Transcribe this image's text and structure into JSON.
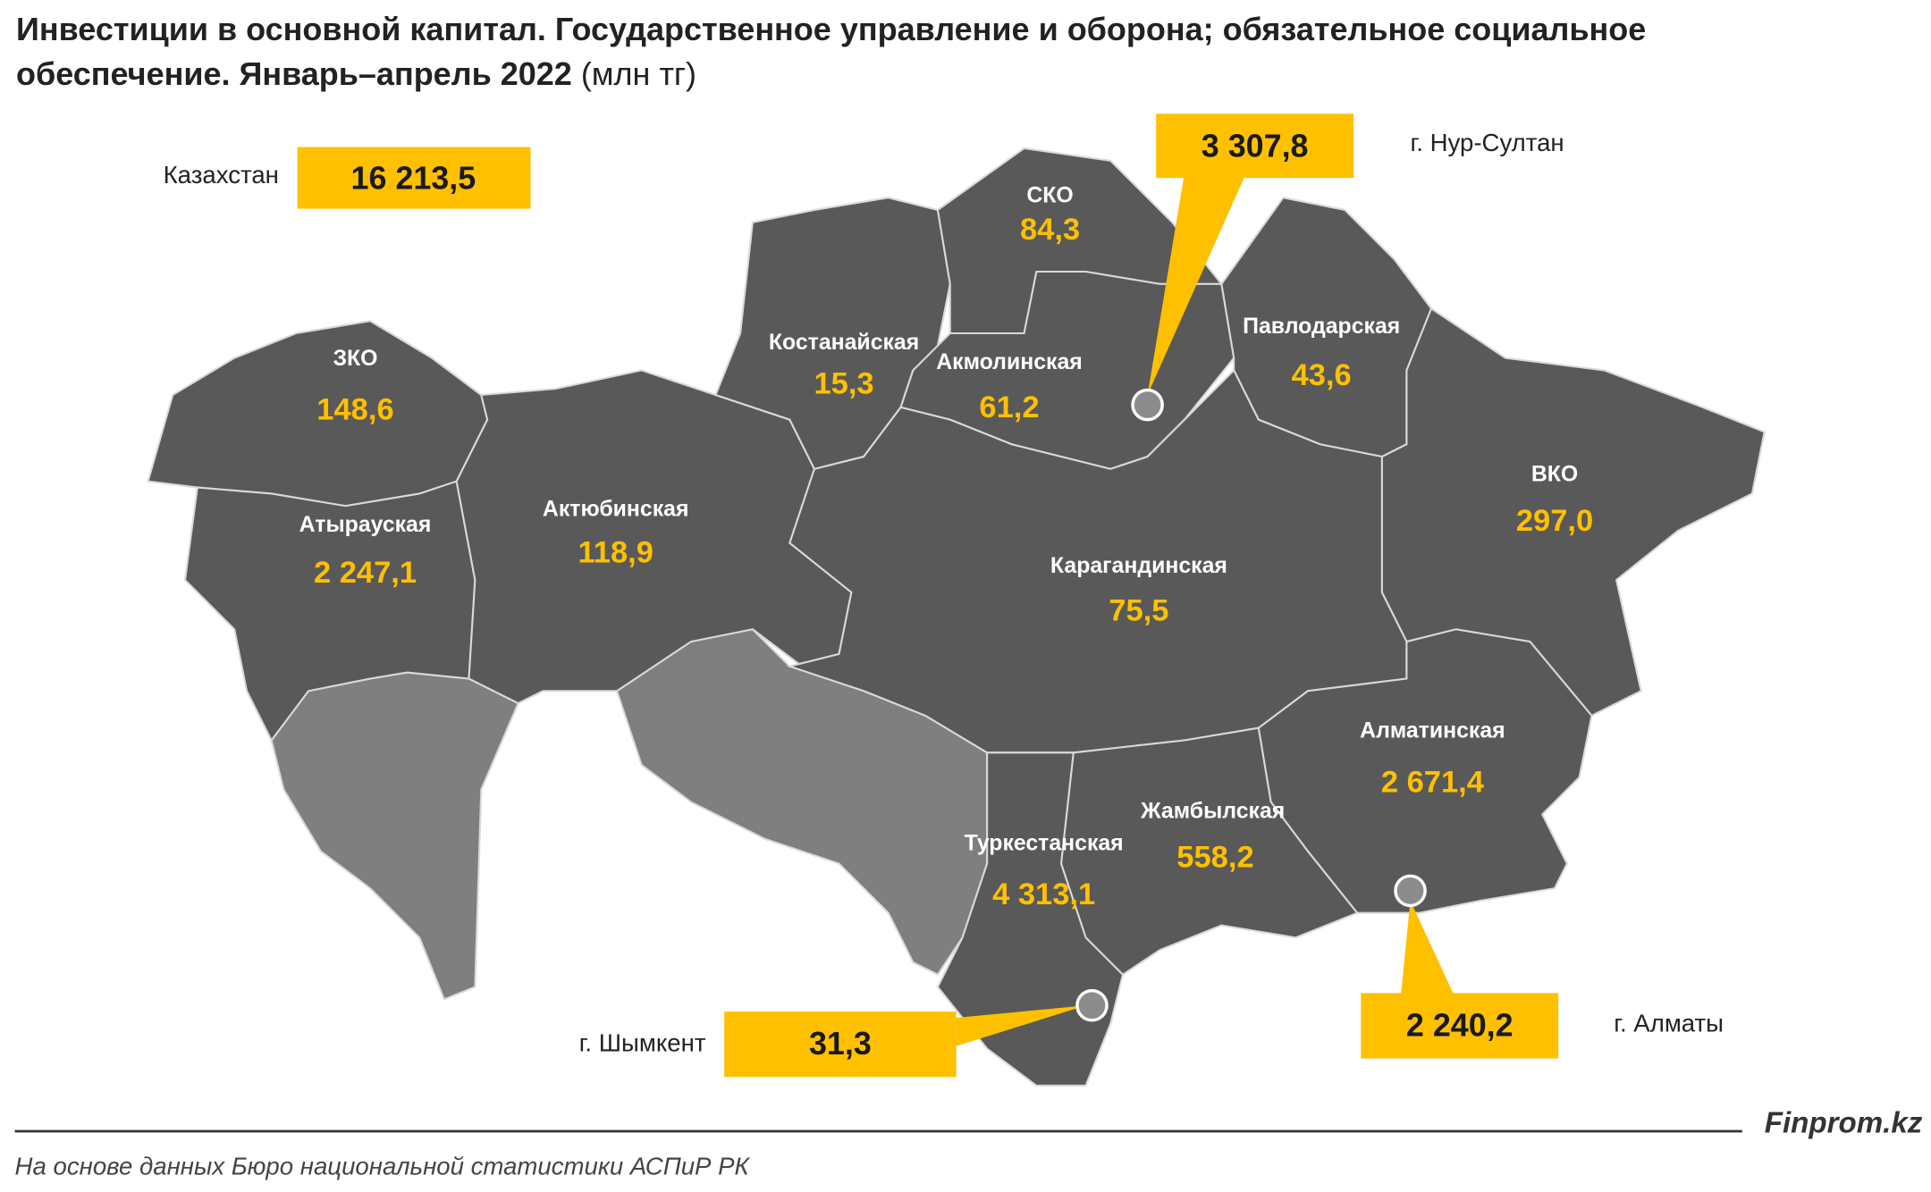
{
  "title": "Инвестиции в основной капитал. Государственное управление и оборона; обязательное социальное обеспечение. Январь–апрель 2022",
  "unit": "(млн тг)",
  "total": {
    "label": "Казахстан",
    "value": "16 213,5"
  },
  "regions": [
    {
      "name": "ЗКО",
      "value": "148,6"
    },
    {
      "name": "Атырауская",
      "value": "2 247,1"
    },
    {
      "name": "Актюбинская",
      "value": "118,9"
    },
    {
      "name": "Костанайская",
      "value": "15,3"
    },
    {
      "name": "СКО",
      "value": "84,3"
    },
    {
      "name": "Акмолинская",
      "value": "61,2"
    },
    {
      "name": "Павлодарская",
      "value": "43,6"
    },
    {
      "name": "ВКО",
      "value": "297,0"
    },
    {
      "name": "Карагандинская",
      "value": "75,5"
    },
    {
      "name": "Алматинская",
      "value": "2 671,4"
    },
    {
      "name": "Жамбылская",
      "value": "558,2"
    },
    {
      "name": "Туркестанская",
      "value": "4 313,1"
    }
  ],
  "cities": [
    {
      "name": "г. Нур-Султан",
      "value": "3 307,8"
    },
    {
      "name": "г. Шымкент",
      "value": "31,3"
    },
    {
      "name": "г. Алматы",
      "value": "2 240,2"
    }
  ],
  "source": "На основе данных Бюро национальной статистики АСПиР РК",
  "brand": "Finprom.kz"
}
